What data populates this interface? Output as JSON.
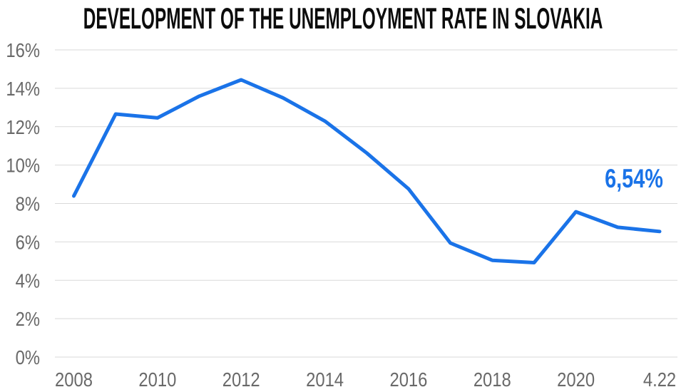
{
  "title": "DEVELOPMENT OF THE UNEMPLOYMENT RATE IN SLOVAKIA",
  "colors": {
    "background": "#ffffff",
    "title_text": "#0c0c0c",
    "line": "#1a73e8",
    "end_label_text": "#1a73e8",
    "grid": "#d9d9d9",
    "axis_text": "#696969"
  },
  "chart_data": {
    "type": "line",
    "title": "DEVELOPMENT OF THE UNEMPLOYMENT RATE IN SLOVAKIA",
    "categories": [
      "2008",
      "2009",
      "2010",
      "2011",
      "2012",
      "2013",
      "2014",
      "2015",
      "2016",
      "2017",
      "2018",
      "2019",
      "2020",
      "2021",
      "4.22"
    ],
    "values": [
      8.39,
      12.66,
      12.46,
      13.59,
      14.44,
      13.5,
      12.29,
      10.63,
      8.76,
      5.94,
      5.04,
      4.92,
      7.57,
      6.76,
      6.54
    ],
    "unit": "%",
    "ylabel": "",
    "xlabel": "",
    "ylim": [
      0,
      16
    ],
    "y_step": 2,
    "y_tick_labels": [
      "16%",
      "14%",
      "12%",
      "10%",
      "8%",
      "6%",
      "4%",
      "2%",
      "0%"
    ],
    "x_tick_labels": [
      "2008",
      "2010",
      "2012",
      "2014",
      "2016",
      "2018",
      "2020",
      "4.22"
    ],
    "x_tick_every": 2,
    "grid": "horizontal",
    "legend": "none",
    "line_width": 5,
    "end_label": "6,54%",
    "end_label_value": 6.54
  }
}
